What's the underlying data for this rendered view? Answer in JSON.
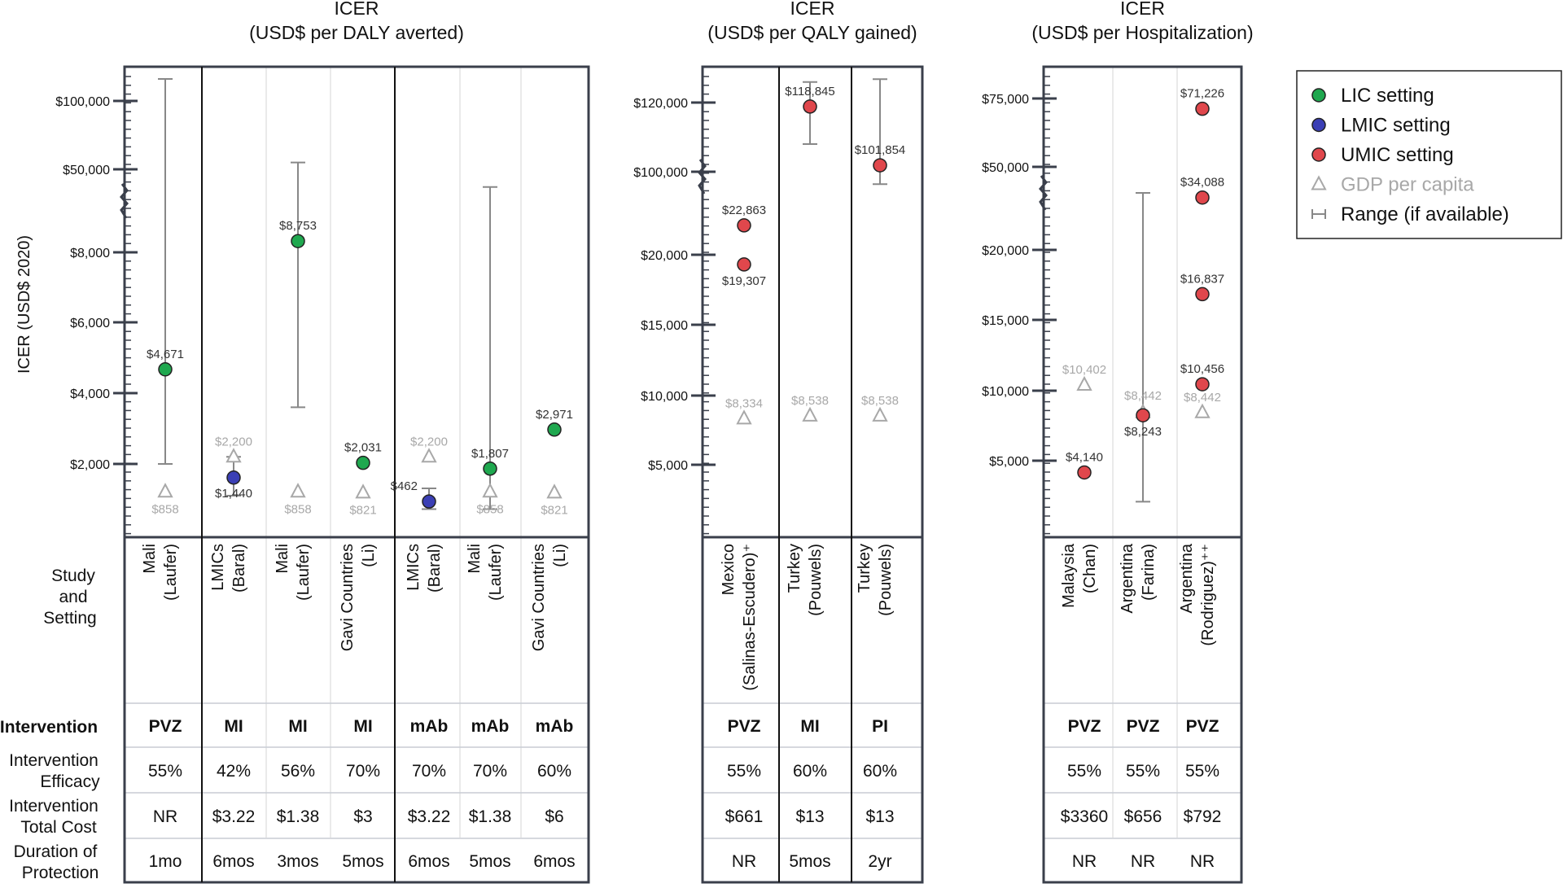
{
  "y_axis_label": "ICER (USD$ 2020)",
  "row_labels": {
    "study": [
      "Study",
      "and",
      "Setting"
    ],
    "intervention": "Intervention",
    "efficacy": [
      "Intervention",
      "Efficacy"
    ],
    "cost": [
      "Intervention",
      "Total Cost"
    ],
    "duration": [
      "Duration of",
      "Protection"
    ]
  },
  "legend": [
    {
      "label": "LIC setting",
      "marker": "circle",
      "color": "#1fa84f"
    },
    {
      "label": "LMIC setting",
      "marker": "circle",
      "color": "#3b3fb5"
    },
    {
      "label": "UMIC setting",
      "marker": "circle",
      "color": "#e0474c"
    },
    {
      "label": "GDP per capita",
      "marker": "triangle",
      "color": "#a8a8a8"
    },
    {
      "label": "Range (if available)",
      "marker": "range",
      "color": "#888888"
    }
  ],
  "chart_data": [
    {
      "type": "scatter",
      "title": [
        "ICER",
        "(USD$ per DALY averted)"
      ],
      "ylabel": "ICER (USD$ 2020)",
      "scale": "broken-axis",
      "ticks": [
        {
          "label": "$2,000",
          "value": 2000
        },
        {
          "label": "$4,000",
          "value": 4000
        },
        {
          "label": "$6,000",
          "value": 6000
        },
        {
          "label": "$8,000",
          "value": 8000
        },
        {
          "label": "$50,000",
          "value": 50000
        },
        {
          "label": "$100,000",
          "value": 100000
        }
      ],
      "groups": [
        1,
        3,
        3
      ],
      "studies": [
        {
          "label": [
            "Mali",
            "(Laufer)"
          ],
          "setting": "LIC",
          "icer": 4671,
          "icer_label": "$4,671",
          "range": [
            2000,
            106000
          ],
          "gdp": 858,
          "gdp_label": "$858",
          "intervention": "PVZ",
          "efficacy": "55%",
          "cost": "NR",
          "duration": "1mo"
        },
        {
          "label": [
            "LMICs",
            "(Baral)"
          ],
          "setting": "LMIC",
          "icer": 1440,
          "icer_label": "$1,440",
          "range": [
            700,
            2200
          ],
          "gdp": 2200,
          "gdp_label": "$2,200",
          "intervention": "MI",
          "efficacy": "42%",
          "cost": "$3.22",
          "duration": "6mos"
        },
        {
          "label": [
            "Mali",
            "(Laufer)"
          ],
          "setting": "LIC",
          "icer": 8753,
          "icer_label": "$8,753",
          "range": [
            3600,
            55000
          ],
          "gdp": 858,
          "gdp_label": "$858",
          "intervention": "MI",
          "efficacy": "56%",
          "cost": "$1.38",
          "duration": "3mos"
        },
        {
          "label": [
            "Gavi Countries",
            "(Li)"
          ],
          "setting": "LIC",
          "icer": 2031,
          "icer_label": "$2,031",
          "range": null,
          "gdp": 821,
          "gdp_label": "$821",
          "intervention": "MI",
          "efficacy": "70%",
          "cost": "$3",
          "duration": "5mos"
        },
        {
          "label": [
            "LMICs",
            "(Baral)"
          ],
          "setting": "LMIC",
          "icer": 462,
          "icer_label": "$462",
          "range": [
            150,
            1000
          ],
          "gdp": 2200,
          "gdp_label": "$2,200",
          "intervention": "mAb",
          "efficacy": "70%",
          "cost": "$3.22",
          "duration": "6mos"
        },
        {
          "label": [
            "Mali",
            "(Laufer)"
          ],
          "setting": "LIC",
          "icer": 1807,
          "icer_label": "$1,807",
          "range": [
            150,
            32000
          ],
          "gdp": 858,
          "gdp_label": "$858",
          "intervention": "mAb",
          "efficacy": "70%",
          "cost": "$1.38",
          "duration": "5mos"
        },
        {
          "label": [
            "Gavi Countries",
            "(Li)"
          ],
          "setting": "LIC",
          "icer": 2971,
          "icer_label": "$2,971",
          "range": null,
          "gdp": 821,
          "gdp_label": "$821",
          "intervention": "mAb",
          "efficacy": "60%",
          "cost": "$6",
          "duration": "6mos"
        }
      ]
    },
    {
      "type": "scatter",
      "title": [
        "ICER",
        "(USD$ per QALY gained)"
      ],
      "scale": "broken-axis",
      "ticks": [
        {
          "label": "$5,000",
          "value": 5000
        },
        {
          "label": "$10,000",
          "value": 10000
        },
        {
          "label": "$15,000",
          "value": 15000
        },
        {
          "label": "$20,000",
          "value": 20000
        },
        {
          "label": "$100,000",
          "value": 100000
        },
        {
          "label": "$120,000",
          "value": 120000
        }
      ],
      "groups": [
        1,
        1,
        1
      ],
      "studies": [
        {
          "label": [
            "Mexico",
            "(Salinas-Escudero)⁺"
          ],
          "setting": "UMIC",
          "icer": [
            22863,
            19307
          ],
          "icer_label": [
            "$22,863",
            "$19,307"
          ],
          "range": null,
          "gdp": 8334,
          "gdp_label": "$8,334",
          "intervention": "PVZ",
          "efficacy": "55%",
          "cost": "$661",
          "duration": "NR"
        },
        {
          "label": [
            "Turkey",
            "(Pouwels)"
          ],
          "setting": "UMIC",
          "icer": 118845,
          "icer_label": "$118,845",
          "range": [
            108000,
            127000
          ],
          "gdp": 8538,
          "gdp_label": "$8,538",
          "intervention": "MI",
          "efficacy": "60%",
          "cost": "$13",
          "duration": "5mos"
        },
        {
          "label": [
            "Turkey",
            "(Pouwels)"
          ],
          "setting": "UMIC",
          "icer": 101854,
          "icer_label": "$101,854",
          "range": [
            91000,
            128000
          ],
          "gdp": 8538,
          "gdp_label": "$8,538",
          "intervention": "PI",
          "efficacy": "60%",
          "cost": "$13",
          "duration": "2yr"
        }
      ]
    },
    {
      "type": "scatter",
      "title": [
        "ICER",
        "(USD$ per Hospitalization)"
      ],
      "scale": "broken-axis",
      "ticks": [
        {
          "label": "$5,000",
          "value": 5000
        },
        {
          "label": "$10,000",
          "value": 10000
        },
        {
          "label": "$15,000",
          "value": 15000
        },
        {
          "label": "$20,000",
          "value": 20000
        },
        {
          "label": "$50,000",
          "value": 50000
        },
        {
          "label": "$75,000",
          "value": 75000
        }
      ],
      "groups": [
        3
      ],
      "studies": [
        {
          "label": [
            "Malaysia",
            "(Chan)"
          ],
          "setting": "UMIC",
          "icer": 4140,
          "icer_label": "$4,140",
          "range": null,
          "gdp": 10402,
          "gdp_label": "$10,402",
          "intervention": "PVZ",
          "efficacy": "55%",
          "cost": "$3360",
          "duration": "NR"
        },
        {
          "label": [
            "Argentina",
            "(Farina)"
          ],
          "setting": "UMIC",
          "icer": 8243,
          "icer_label": "$8,243",
          "range": [
            2000,
            36000
          ],
          "gdp": 8442,
          "gdp_label": "$8,442",
          "intervention": "PVZ",
          "efficacy": "55%",
          "cost": "$656",
          "duration": "NR"
        },
        {
          "label": [
            "Argentina",
            "(Rodriguez)⁺⁺"
          ],
          "setting": "UMIC",
          "icer": [
            71226,
            34088,
            16837,
            10456
          ],
          "icer_label": [
            "$71,226",
            "$34,088",
            "$16,837",
            "$10,456"
          ],
          "range": null,
          "gdp": 8442,
          "gdp_label": "$8,442",
          "intervention": "PVZ",
          "efficacy": "55%",
          "cost": "$792",
          "duration": "NR"
        }
      ]
    }
  ]
}
